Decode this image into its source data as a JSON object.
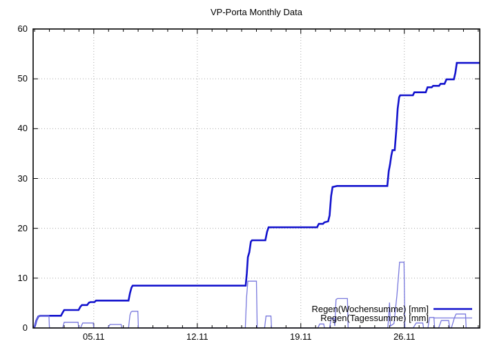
{
  "chart_data": {
    "type": "line",
    "title": "VP-Porta Monthly Data",
    "x_axis": {
      "kind": "date",
      "date_format": "DD.MM",
      "tick_labels": [
        "05.11",
        "12.11",
        "19.11",
        "26.11"
      ],
      "tick_days": [
        5,
        12,
        19,
        26
      ],
      "minor_tick_step_days": 1,
      "domain_days": [
        0.9,
        31.1
      ]
    },
    "y_axis": {
      "ticks": [
        0,
        10,
        20,
        30,
        40,
        50,
        60
      ],
      "range": [
        0,
        60
      ]
    },
    "grid": {
      "visible": true,
      "style": "dotted",
      "color": "#a8a8a8"
    },
    "legend": {
      "position": "bottom-right",
      "entries": [
        "Regen(Wochensumme) [mm]",
        "Regen(Tagessumme) [mm]"
      ]
    },
    "colors": {
      "border": "#000000",
      "weekly_line": "#1212cd",
      "daily_line": "#7878dd"
    },
    "series": [
      {
        "name": "Regen(Wochensumme) [mm]",
        "color": "#1212cd",
        "stroke_width": 2.6,
        "points": [
          [
            0.93,
            0
          ],
          [
            1.02,
            0.4
          ],
          [
            1.12,
            1.5
          ],
          [
            1.25,
            2.3
          ],
          [
            1.38,
            2.45
          ],
          [
            2.78,
            2.45
          ],
          [
            2.9,
            3.1
          ],
          [
            3.0,
            3.6
          ],
          [
            3.97,
            3.6
          ],
          [
            4.1,
            4.3
          ],
          [
            4.2,
            4.6
          ],
          [
            4.55,
            4.6
          ],
          [
            4.68,
            5.1
          ],
          [
            4.78,
            5.2
          ],
          [
            5.05,
            5.2
          ],
          [
            5.15,
            5.5
          ],
          [
            7.35,
            5.5
          ],
          [
            7.45,
            7.0
          ],
          [
            7.55,
            8.1
          ],
          [
            7.63,
            8.5
          ],
          [
            15.27,
            8.5
          ],
          [
            15.35,
            11.0
          ],
          [
            15.42,
            14.2
          ],
          [
            15.52,
            15.2
          ],
          [
            15.62,
            17.3
          ],
          [
            15.7,
            17.6
          ],
          [
            16.6,
            17.6
          ],
          [
            16.72,
            19.3
          ],
          [
            16.82,
            20.2
          ],
          [
            20.1,
            20.2
          ],
          [
            20.22,
            20.9
          ],
          [
            20.5,
            20.9
          ],
          [
            20.6,
            21.2
          ],
          [
            20.85,
            21.4
          ],
          [
            20.95,
            22.6
          ],
          [
            21.05,
            26.5
          ],
          [
            21.15,
            28.3
          ],
          [
            21.45,
            28.5
          ],
          [
            24.85,
            28.5
          ],
          [
            24.95,
            31.5
          ],
          [
            25.03,
            32.8
          ],
          [
            25.12,
            34.6
          ],
          [
            25.2,
            35.7
          ],
          [
            25.35,
            35.7
          ],
          [
            25.45,
            39.5
          ],
          [
            25.55,
            44.0
          ],
          [
            25.65,
            46.3
          ],
          [
            25.72,
            46.7
          ],
          [
            26.58,
            46.7
          ],
          [
            26.68,
            47.3
          ],
          [
            27.45,
            47.3
          ],
          [
            27.57,
            48.3
          ],
          [
            27.85,
            48.3
          ],
          [
            27.95,
            48.6
          ],
          [
            28.35,
            48.6
          ],
          [
            28.45,
            49.0
          ],
          [
            28.72,
            49.0
          ],
          [
            28.85,
            49.9
          ],
          [
            29.35,
            49.9
          ],
          [
            29.45,
            51.2
          ],
          [
            29.55,
            53.2
          ],
          [
            31.1,
            53.2
          ]
        ]
      },
      {
        "name": "Regen(Tagessumme) [mm]",
        "color": "#7878dd",
        "stroke_width": 1.3,
        "points": [
          [
            0.93,
            0
          ],
          [
            1.02,
            0.4
          ],
          [
            1.12,
            1.5
          ],
          [
            1.25,
            2.3
          ],
          [
            1.38,
            2.45
          ],
          [
            1.97,
            2.45
          ],
          [
            2.0,
            0
          ],
          [
            2.9,
            0
          ],
          [
            3.0,
            1.15
          ],
          [
            3.94,
            1.15
          ],
          [
            3.98,
            0
          ],
          [
            4.1,
            0
          ],
          [
            4.25,
            1.0
          ],
          [
            4.96,
            1.0
          ],
          [
            5.0,
            0
          ],
          [
            5.95,
            0
          ],
          [
            6.1,
            0.7
          ],
          [
            6.85,
            0.7
          ],
          [
            6.9,
            0
          ],
          [
            7.35,
            0
          ],
          [
            7.45,
            2.6
          ],
          [
            7.52,
            3.2
          ],
          [
            7.6,
            3.35
          ],
          [
            7.98,
            3.35
          ],
          [
            8.02,
            0
          ],
          [
            15.25,
            0
          ],
          [
            15.33,
            6.0
          ],
          [
            15.42,
            9.4
          ],
          [
            16.0,
            9.4
          ],
          [
            16.05,
            0
          ],
          [
            16.55,
            0
          ],
          [
            16.65,
            2.4
          ],
          [
            16.98,
            2.4
          ],
          [
            17.02,
            0
          ],
          [
            20.15,
            0
          ],
          [
            20.28,
            0.8
          ],
          [
            20.55,
            0.8
          ],
          [
            20.6,
            0
          ],
          [
            20.95,
            0
          ],
          [
            21.05,
            1.9
          ],
          [
            21.25,
            1.9
          ],
          [
            21.3,
            0.4
          ],
          [
            21.38,
            5.7
          ],
          [
            21.48,
            5.9
          ],
          [
            22.15,
            5.9
          ],
          [
            22.2,
            0
          ],
          [
            24.88,
            0
          ],
          [
            24.94,
            2.0
          ],
          [
            25.0,
            5.1
          ],
          [
            25.06,
            0.4
          ],
          [
            25.3,
            0.9
          ],
          [
            25.5,
            6.5
          ],
          [
            25.68,
            13.2
          ],
          [
            25.98,
            13.2
          ],
          [
            26.04,
            0
          ],
          [
            26.6,
            0
          ],
          [
            26.7,
            0.5
          ],
          [
            26.8,
            1.0
          ],
          [
            27.25,
            1.0
          ],
          [
            27.3,
            0
          ],
          [
            27.6,
            0
          ],
          [
            27.7,
            2.1
          ],
          [
            28.0,
            2.1
          ],
          [
            28.05,
            0
          ],
          [
            28.32,
            0
          ],
          [
            28.5,
            1.5
          ],
          [
            29.0,
            1.5
          ],
          [
            29.06,
            0
          ],
          [
            29.18,
            0
          ],
          [
            29.38,
            2.0
          ],
          [
            29.5,
            2.8
          ],
          [
            30.14,
            2.8
          ],
          [
            30.18,
            0
          ],
          [
            31.05,
            0
          ]
        ]
      }
    ]
  }
}
